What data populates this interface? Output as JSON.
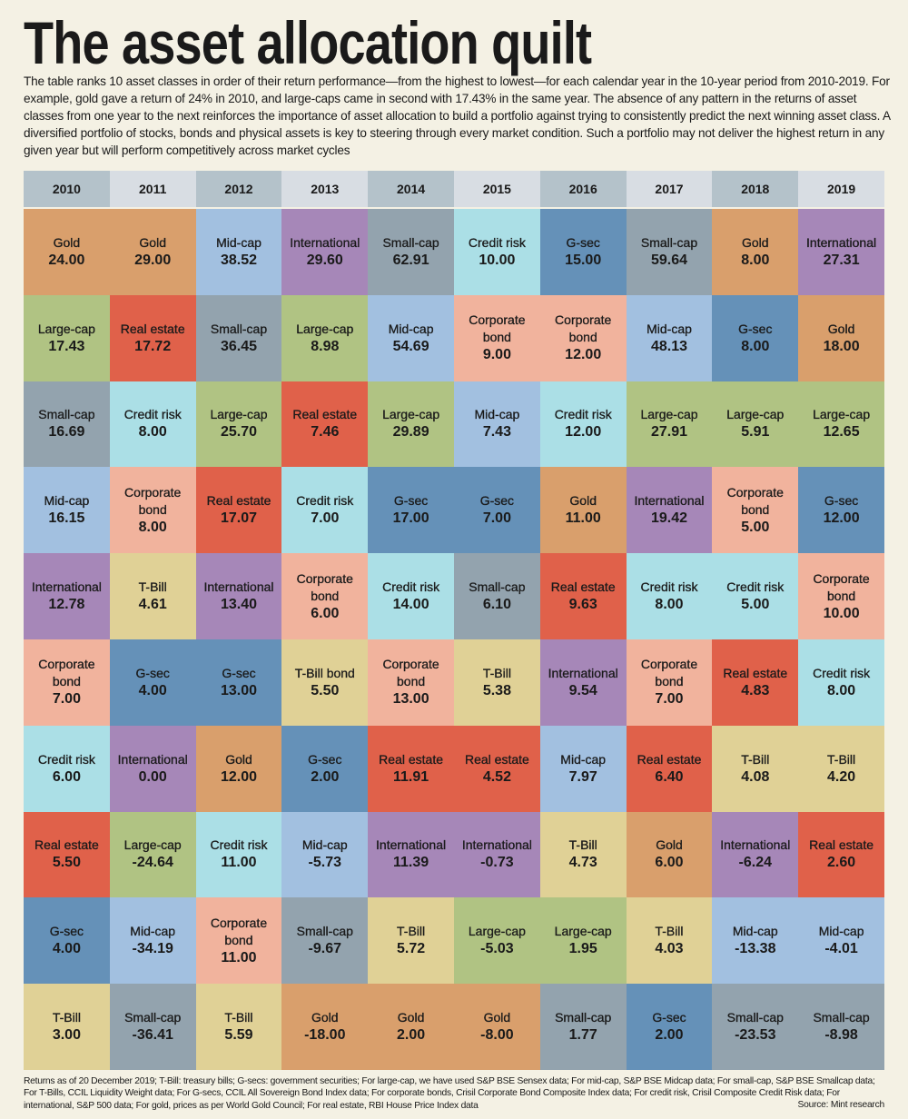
{
  "title": "The asset allocation quilt",
  "intro": "The table ranks 10 asset classes in order of their return performance—from the highest to lowest—for each calendar year in the 10-year period from 2010-2019. For example, gold gave a return of 24% in 2010, and large-caps came in second with 17.43% in the same year. The absence of any pattern in the returns of asset classes from one year to the next reinforces the importance of asset allocation to build a portfolio against trying to consistently predict the next winning asset class. A diversified portfolio of stocks, bonds and physical assets is key to steering through every market condition. Such a portfolio may not deliver the highest return in any given year but will perform competitively across market cycles",
  "footnote": "Returns as of 20 December 2019; T-Bill: treasury bills; G-secs: government securities; For large-cap, we have used S&P BSE Sensex data; For mid-cap, S&P BSE Midcap data; For small-cap, S&P BSE Smallcap data; For T-Bills, CCIL Liquidity Weight data; For G-secs, CCIL All Sovereign Bond Index data; For corporate bonds, Crisil Corporate Bond Composite Index data; For credit risk, Crisil Composite Credit Risk data; For international, S&P 500 data; For gold, prices as per World Gold Council; For real estate, RBI House Price Index data",
  "source": "Source: Mint research",
  "header_colors": [
    "#b4c2ca",
    "#d8dde3"
  ],
  "chart_data": {
    "type": "table",
    "categories": [
      "2010",
      "2011",
      "2012",
      "2013",
      "2014",
      "2015",
      "2016",
      "2017",
      "2018",
      "2019"
    ],
    "asset_colors": {
      "Gold": "#d99f6c",
      "Mid-cap": "#a2c0e0",
      "International": "#a687b8",
      "Small-cap": "#93a3ae",
      "Credit risk": "#abdfe6",
      "G-sec": "#6591b8",
      "Large-cap": "#b0c383",
      "Real estate": "#e0614a",
      "Corporate bond": "#f1b39d",
      "T-Bill": "#e0d196",
      "T-Bill bond": "#e0d196"
    },
    "columns": [
      [
        [
          "Gold",
          "24.00"
        ],
        [
          "Large-cap",
          "17.43"
        ],
        [
          "Small-cap",
          "16.69"
        ],
        [
          "Mid-cap",
          "16.15"
        ],
        [
          "International",
          "12.78"
        ],
        [
          "Corporate bond",
          "7.00"
        ],
        [
          "Credit risk",
          "6.00"
        ],
        [
          "Real estate",
          "5.50"
        ],
        [
          "G-sec",
          "4.00"
        ],
        [
          "T-Bill",
          "3.00"
        ]
      ],
      [
        [
          "Gold",
          "29.00"
        ],
        [
          "Real estate",
          "17.72"
        ],
        [
          "Credit risk",
          "8.00"
        ],
        [
          "Corporate bond",
          "8.00"
        ],
        [
          "T-Bill",
          "4.61"
        ],
        [
          "G-sec",
          "4.00"
        ],
        [
          "International",
          "0.00"
        ],
        [
          "Large-cap",
          "-24.64"
        ],
        [
          "Mid-cap",
          "-34.19"
        ],
        [
          "Small-cap",
          "-36.41"
        ]
      ],
      [
        [
          "Mid-cap",
          "38.52"
        ],
        [
          "Small-cap",
          "36.45"
        ],
        [
          "Large-cap",
          "25.70"
        ],
        [
          "Real estate",
          "17.07"
        ],
        [
          "International",
          "13.40"
        ],
        [
          "G-sec",
          "13.00"
        ],
        [
          "Gold",
          "12.00"
        ],
        [
          "Credit risk",
          "11.00"
        ],
        [
          "Corporate bond",
          "11.00"
        ],
        [
          "T-Bill",
          "5.59"
        ]
      ],
      [
        [
          "International",
          "29.60"
        ],
        [
          "Large-cap",
          "8.98"
        ],
        [
          "Real estate",
          "7.46"
        ],
        [
          "Credit risk",
          "7.00"
        ],
        [
          "Corporate bond",
          "6.00"
        ],
        [
          "T-Bill bond",
          "5.50"
        ],
        [
          "G-sec",
          "2.00"
        ],
        [
          "Mid-cap",
          "-5.73"
        ],
        [
          "Small-cap",
          "-9.67"
        ],
        [
          "Gold",
          "-18.00"
        ]
      ],
      [
        [
          "Small-cap",
          "62.91"
        ],
        [
          "Mid-cap",
          "54.69"
        ],
        [
          "Large-cap",
          "29.89"
        ],
        [
          "G-sec",
          "17.00"
        ],
        [
          "Credit risk",
          "14.00"
        ],
        [
          "Corporate bond",
          "13.00"
        ],
        [
          "Real estate",
          "11.91"
        ],
        [
          "International",
          "11.39"
        ],
        [
          "T-Bill",
          "5.72"
        ],
        [
          "Gold",
          "2.00"
        ]
      ],
      [
        [
          "Credit risk",
          "10.00"
        ],
        [
          "Corporate bond",
          "9.00"
        ],
        [
          "Mid-cap",
          "7.43"
        ],
        [
          "G-sec",
          "7.00"
        ],
        [
          "Small-cap",
          "6.10"
        ],
        [
          "T-Bill",
          "5.38"
        ],
        [
          "Real estate",
          "4.52"
        ],
        [
          "International",
          "-0.73"
        ],
        [
          "Large-cap",
          "-5.03"
        ],
        [
          "Gold",
          "-8.00"
        ]
      ],
      [
        [
          "G-sec",
          "15.00"
        ],
        [
          "Corporate bond",
          "12.00"
        ],
        [
          "Credit risk",
          "12.00"
        ],
        [
          "Gold",
          "11.00"
        ],
        [
          "Real estate",
          "9.63"
        ],
        [
          "International",
          "9.54"
        ],
        [
          "Mid-cap",
          "7.97"
        ],
        [
          "T-Bill",
          "4.73"
        ],
        [
          "Large-cap",
          "1.95"
        ],
        [
          "Small-cap",
          "1.77"
        ]
      ],
      [
        [
          "Small-cap",
          "59.64"
        ],
        [
          "Mid-cap",
          "48.13"
        ],
        [
          "Large-cap",
          "27.91"
        ],
        [
          "International",
          "19.42"
        ],
        [
          "Credit risk",
          "8.00"
        ],
        [
          "Corporate bond",
          "7.00"
        ],
        [
          "Real estate",
          "6.40"
        ],
        [
          "Gold",
          "6.00"
        ],
        [
          "T-Bill",
          "4.03"
        ],
        [
          "G-sec",
          "2.00"
        ]
      ],
      [
        [
          "Gold",
          "8.00"
        ],
        [
          "G-sec",
          "8.00"
        ],
        [
          "Large-cap",
          "5.91"
        ],
        [
          "Corporate bond",
          "5.00"
        ],
        [
          "Credit risk",
          "5.00"
        ],
        [
          "Real estate",
          "4.83"
        ],
        [
          "T-Bill",
          "4.08"
        ],
        [
          "International",
          "-6.24"
        ],
        [
          "Mid-cap",
          "-13.38"
        ],
        [
          "Small-cap",
          "-23.53"
        ]
      ],
      [
        [
          "International",
          "27.31"
        ],
        [
          "Gold",
          "18.00"
        ],
        [
          "Large-cap",
          "12.65"
        ],
        [
          "G-sec",
          "12.00"
        ],
        [
          "Corporate bond",
          "10.00"
        ],
        [
          "Credit risk",
          "8.00"
        ],
        [
          "T-Bill",
          "4.20"
        ],
        [
          "Real estate",
          "2.60"
        ],
        [
          "Mid-cap",
          "-4.01"
        ],
        [
          "Small-cap",
          "-8.98"
        ]
      ]
    ]
  }
}
